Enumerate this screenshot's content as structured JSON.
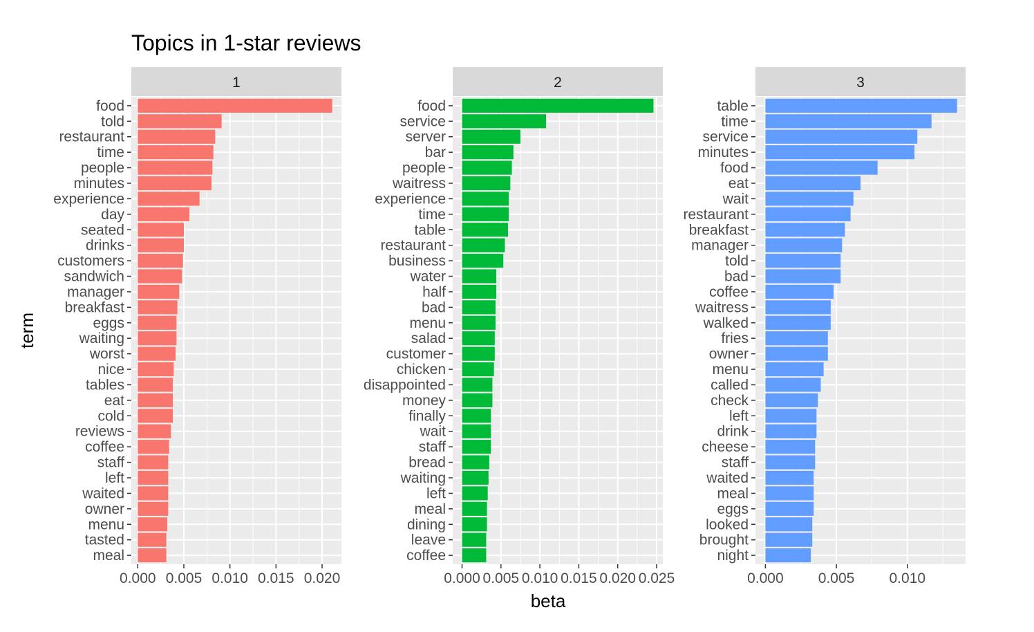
{
  "chart_data": {
    "type": "bar",
    "orientation": "horizontal",
    "title": "Topics in 1-star reviews",
    "xlabel": "beta",
    "ylabel": "term",
    "grid": true,
    "facets": [
      {
        "label": "1",
        "color": "#F8766D",
        "xlim": [
          -0.0007,
          0.0221
        ],
        "xticks": [
          0.0,
          0.005,
          0.01,
          0.015,
          0.02
        ],
        "xtick_labels": [
          "0.000",
          "0.005",
          "0.010",
          "0.015",
          "0.020"
        ],
        "terms": [
          "food",
          "told",
          "restaurant",
          "time",
          "people",
          "minutes",
          "experience",
          "day",
          "seated",
          "drinks",
          "customers",
          "sandwich",
          "manager",
          "breakfast",
          "eggs",
          "waiting",
          "worst",
          "nice",
          "tables",
          "eat",
          "cold",
          "reviews",
          "coffee",
          "staff",
          "left",
          "waited",
          "owner",
          "menu",
          "tasted",
          "meal"
        ],
        "values": [
          0.0211,
          0.0091,
          0.0084,
          0.0082,
          0.0081,
          0.008,
          0.0067,
          0.0056,
          0.005,
          0.005,
          0.0049,
          0.0048,
          0.0045,
          0.0043,
          0.0042,
          0.0042,
          0.0041,
          0.0039,
          0.0038,
          0.0038,
          0.0038,
          0.0036,
          0.0034,
          0.0033,
          0.0033,
          0.0033,
          0.0033,
          0.0032,
          0.0031,
          0.0031
        ]
      },
      {
        "label": "2",
        "color": "#00BA38",
        "xlim": [
          -0.0012,
          0.0258
        ],
        "xticks": [
          0.0,
          0.005,
          0.01,
          0.015,
          0.02,
          0.025
        ],
        "xtick_labels": [
          "0.000",
          "0.005",
          "0.010",
          "0.015",
          "0.020",
          "0.025"
        ],
        "terms": [
          "food",
          "service",
          "server",
          "bar",
          "people",
          "waitress",
          "experience",
          "time",
          "table",
          "restaurant",
          "business",
          "water",
          "half",
          "bad",
          "menu",
          "salad",
          "customer",
          "chicken",
          "disappointed",
          "money",
          "finally",
          "wait",
          "staff",
          "bread",
          "waiting",
          "left",
          "meal",
          "dining",
          "leave",
          "coffee"
        ],
        "values": [
          0.0246,
          0.0108,
          0.0075,
          0.0066,
          0.0064,
          0.0062,
          0.006,
          0.006,
          0.0059,
          0.0055,
          0.0053,
          0.0044,
          0.0044,
          0.0043,
          0.0043,
          0.0042,
          0.0042,
          0.0041,
          0.0039,
          0.0039,
          0.0037,
          0.0037,
          0.0037,
          0.0035,
          0.0034,
          0.0033,
          0.0032,
          0.0032,
          0.0031,
          0.0031
        ]
      },
      {
        "label": "3",
        "color": "#619CFF",
        "xlim": [
          -0.0007,
          0.0141
        ],
        "xticks": [
          0.0,
          0.005,
          0.01
        ],
        "xtick_labels": [
          "0.000",
          "0.005",
          "0.010"
        ],
        "terms": [
          "table",
          "time",
          "service",
          "minutes",
          "food",
          "eat",
          "wait",
          "restaurant",
          "breakfast",
          "manager",
          "told",
          "bad",
          "coffee",
          "waitress",
          "walked",
          "fries",
          "owner",
          "menu",
          "called",
          "check",
          "left",
          "drink",
          "cheese",
          "staff",
          "waited",
          "meal",
          "eggs",
          "looked",
          "brought",
          "night"
        ],
        "values": [
          0.0135,
          0.0117,
          0.0107,
          0.0105,
          0.0079,
          0.0067,
          0.0062,
          0.006,
          0.0056,
          0.0054,
          0.0053,
          0.0053,
          0.0048,
          0.0046,
          0.0046,
          0.0044,
          0.0044,
          0.0041,
          0.0039,
          0.0037,
          0.0036,
          0.0036,
          0.0035,
          0.0035,
          0.0034,
          0.0034,
          0.0034,
          0.0033,
          0.0033,
          0.0032
        ]
      }
    ]
  }
}
